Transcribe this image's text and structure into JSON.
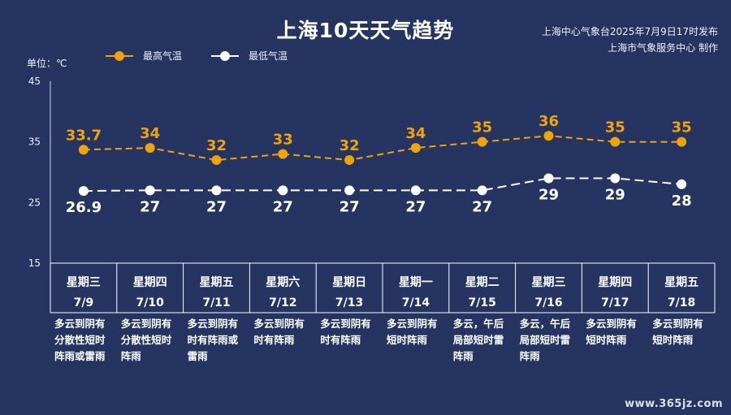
{
  "title": "上海10天天气趋势",
  "issuer": {
    "line1": "上海中心气象台2025年7月9日17时发布",
    "line2": "上海市气象服务中心 制作"
  },
  "unit_label": "单位：℃",
  "colors": {
    "high": "#f0a30a",
    "low": "#ffffff",
    "background": "#263461",
    "grid": "#ffffff"
  },
  "watermark": "www.365jz.com",
  "chart_data": {
    "type": "line",
    "ylim": [
      15,
      45
    ],
    "yticks": [
      15,
      25,
      35,
      45
    ],
    "categories": [
      "7/9",
      "7/10",
      "7/11",
      "7/12",
      "7/13",
      "7/14",
      "7/15",
      "7/16",
      "7/17",
      "7/18"
    ],
    "weekdays": [
      "星期三",
      "星期四",
      "星期五",
      "星期六",
      "星期日",
      "星期一",
      "星期二",
      "星期三",
      "星期四",
      "星期五"
    ],
    "weather": [
      "多云到阴有分散性短时阵雨或雷雨",
      "多云到阴有分散性短时阵雨",
      "多云到阴有时有阵雨或雷雨",
      "多云到阴有时有阵雨",
      "多云到阴有时有阵雨",
      "多云到阴有短时阵雨",
      "多云，午后局部短时雷阵雨",
      "多云，午后局部短时雷阵雨",
      "多云到阴有短时阵雨",
      "多云到阴有短时阵雨"
    ],
    "legend_position": "top-left",
    "grid": false,
    "series": [
      {
        "name": "最高气温",
        "values": [
          "33.7",
          "34",
          "32",
          "33",
          "32",
          "34",
          "35",
          "36",
          "35",
          "35"
        ],
        "label_position": "above"
      },
      {
        "name": "最低气温",
        "values": [
          "26.9",
          "27",
          "27",
          "27",
          "27",
          "27",
          "27",
          "29",
          "29",
          "28"
        ],
        "label_position": "below"
      }
    ]
  }
}
